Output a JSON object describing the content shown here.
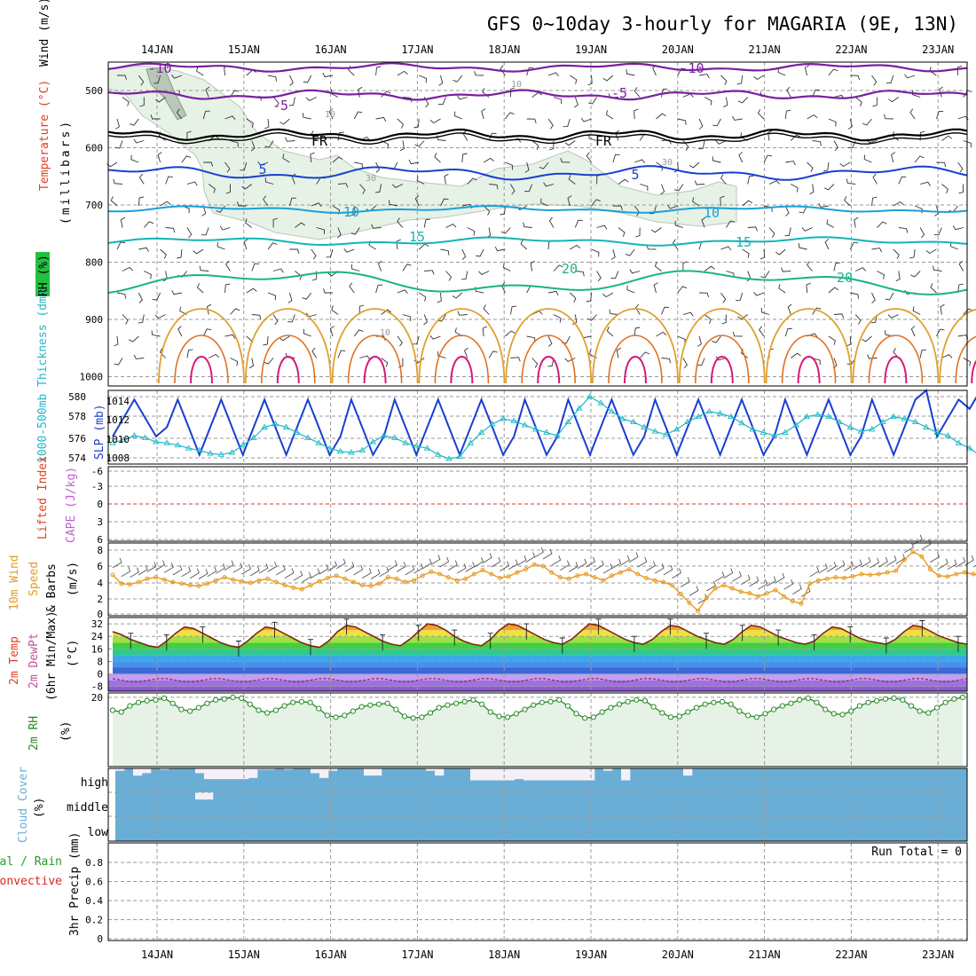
{
  "title": "GFS 0~10day 3-hourly for MAGARIA (9E, 13N)",
  "dates": [
    "14JAN",
    "15JAN",
    "16JAN",
    "17JAN",
    "18JAN",
    "19JAN",
    "20JAN",
    "21JAN",
    "22JAN",
    "23JAN"
  ],
  "colors": {
    "isotherm_cold": "#7a1fa0",
    "isotherm_fr": "#000000",
    "isotherm_blue": "#1a3fd1",
    "isotherm_lightblue": "#1a9fd9",
    "isotherm_teal": "#14b4b4",
    "isotherm_green": "#19b38a",
    "isotherm_orange": "#e0a030",
    "isotherm_darkorange": "#e07020",
    "isotherm_magenta": "#d6187a",
    "rh_fill": "#e6f2e6",
    "slp": "#1a3fd1",
    "thickness": "#20b8c8",
    "wind10": "#e89a20",
    "rh2m": "#2a8a2a",
    "cloud": "#6aaed6",
    "cloud_clear": "#f4f0f8"
  },
  "panels": {
    "upper": {
      "ylabel_wind": "Wind (m/s)",
      "ylabel_temp": "Temperature (°C)",
      "ylabel_rh": "RH (%)",
      "ylabel_pres": "(millibars)",
      "yticks": [
        "500",
        "600",
        "700",
        "800",
        "900",
        "1000"
      ],
      "contour_labels": [
        "-10",
        "-5",
        "FR",
        "5",
        "10",
        "15",
        "20",
        "-10",
        "-5",
        "FR",
        "5",
        "10",
        "15",
        "20",
        "10",
        "10",
        "30",
        "30",
        "10"
      ]
    },
    "slp": {
      "ylabel_thick": "1000-500mb Thickness (dm)",
      "ylabel_slp": "SLP (mb)",
      "left_ticks": [
        "580",
        "578",
        "576",
        "574"
      ],
      "right_ticks": [
        "1014",
        "1012",
        "1010",
        "1008"
      ]
    },
    "cape": {
      "ylabel_li": "Lifted Index",
      "ylabel_cape": "CAPE (J/kg)",
      "ticks": [
        "-6",
        "-3",
        "0",
        "3",
        "6"
      ]
    },
    "wind10": {
      "ylabel_a": "10m Wind",
      "ylabel_b": "Speed",
      "ylabel_c": "& Barbs",
      "ylabel_unit": "(m/s)",
      "ticks": [
        "8",
        "6",
        "4",
        "2",
        "0"
      ]
    },
    "temp2m": {
      "ylabel_a": "2m Temp",
      "ylabel_b": "2m DewPt",
      "ylabel_c": "(6hr Min/Max)",
      "ylabel_unit": "(°C)",
      "ticks": [
        "32",
        "24",
        "16",
        "8",
        "0",
        "-8"
      ]
    },
    "rh2m": {
      "ylabel": "2m RH",
      "ylabel_unit": "(%)",
      "ticks": [
        "20"
      ]
    },
    "cloud": {
      "ylabel": "Cloud Cover",
      "ylabel_unit": "(%)",
      "levels": [
        "high",
        "middle",
        "low"
      ]
    },
    "precip": {
      "ylabel_a": "Total / Rain",
      "ylabel_b": "Convective",
      "ylabel_unit": "3hr Precip (mm)",
      "ticks": [
        "0.8",
        "0.6",
        "0.4",
        "0.2",
        "0"
      ],
      "run_total": "Run Total = 0"
    }
  },
  "chart_data": [
    {
      "type": "line",
      "name": "slp-thickness",
      "x_unit": "3-hourly steps from 13JAN 12Z",
      "series": [
        {
          "name": "SLP (mb)",
          "axis": "right",
          "ylim": [
            1007,
            1015
          ],
          "values": [
            1010,
            1012,
            1014,
            1012,
            1010,
            1011,
            1014,
            1011,
            1008,
            1011,
            1014,
            1011,
            1008,
            1011,
            1014,
            1011,
            1008,
            1011,
            1014,
            1011,
            1008,
            1010,
            1014,
            1011,
            1008,
            1010,
            1014,
            1011,
            1008,
            1011,
            1014,
            1011,
            1008,
            1011,
            1014,
            1011,
            1008,
            1010,
            1014,
            1011,
            1008,
            1010,
            1014,
            1011,
            1008,
            1011,
            1014,
            1011,
            1008,
            1010,
            1014,
            1011,
            1008,
            1011,
            1014,
            1011,
            1008,
            1011,
            1014,
            1011,
            1008,
            1010,
            1014,
            1011,
            1008,
            1011,
            1014,
            1011,
            1008,
            1010,
            1014,
            1011,
            1008,
            1011,
            1014,
            1015,
            1010,
            1012,
            1014,
            1013,
            1015
          ]
        },
        {
          "name": "1000-500mb Thickness (dm)",
          "axis": "left",
          "ylim": [
            573.5,
            580.5
          ],
          "values": [
            575.5,
            575.8,
            576.2,
            576.0,
            575.6,
            575.5,
            575.3,
            575.0,
            574.8,
            574.5,
            574.4,
            574.6,
            575.3,
            576.0,
            577.0,
            577.3,
            577.0,
            576.5,
            576.0,
            575.5,
            575.0,
            574.7,
            574.6,
            574.8,
            575.6,
            576.2,
            576.0,
            575.5,
            575.2,
            575.0,
            574.4,
            574.0,
            574.2,
            575.5,
            576.5,
            577.3,
            577.8,
            577.6,
            577.2,
            576.8,
            576.5,
            576.2,
            577.5,
            578.8,
            579.9,
            579.3,
            578.5,
            577.8,
            577.5,
            577.0,
            576.6,
            576.3,
            576.8,
            577.5,
            578.0,
            578.5,
            578.3,
            578.0,
            577.4,
            576.8,
            576.5,
            576.2,
            576.5,
            577.2,
            578.0,
            578.2,
            578.0,
            577.5,
            577.0,
            576.6,
            576.8,
            577.5,
            578.0,
            577.8,
            577.5,
            577.0,
            576.5,
            576.2,
            575.5,
            575.0,
            574.3
          ]
        }
      ]
    },
    {
      "type": "line",
      "name": "lifted-index",
      "series": [
        {
          "name": "Lifted Index",
          "values": []
        }
      ],
      "ylim": [
        6,
        -6
      ],
      "reference": 0
    },
    {
      "type": "line",
      "name": "wind10m",
      "ylim": [
        0,
        9
      ],
      "series": [
        {
          "name": "Speed",
          "values": [
            4.9,
            3.8,
            3.7,
            4.0,
            4.4,
            4.6,
            4.3,
            4.0,
            3.8,
            3.6,
            3.5,
            3.8,
            4.2,
            4.6,
            4.3,
            4.1,
            3.9,
            4.2,
            4.4,
            4.0,
            3.6,
            3.3,
            3.1,
            3.6,
            4.1,
            4.5,
            4.8,
            4.4,
            4.0,
            3.6,
            3.5,
            3.8,
            4.6,
            4.4,
            4.0,
            4.2,
            4.8,
            5.3,
            5.0,
            4.6,
            4.2,
            4.4,
            5.0,
            5.5,
            5.0,
            4.5,
            4.7,
            5.2,
            5.6,
            6.2,
            6.0,
            5.2,
            4.6,
            4.4,
            4.8,
            5.0,
            4.6,
            4.2,
            4.8,
            5.2,
            5.6,
            5.0,
            4.5,
            4.2,
            4.0,
            3.6,
            2.5,
            1.4,
            0.4,
            2.0,
            3.2,
            3.6,
            3.2,
            2.8,
            2.6,
            2.2,
            2.6,
            3.0,
            2.2,
            1.6,
            1.3,
            3.8,
            4.2,
            4.4,
            4.6,
            4.5,
            4.7,
            5.0,
            4.9,
            5.0,
            5.2,
            5.4,
            6.8,
            7.8,
            7.2,
            5.6,
            4.8,
            4.7,
            5.0,
            5.2,
            5.0,
            4.8
          ]
        }
      ]
    },
    {
      "type": "area",
      "name": "temp2m",
      "ylim": [
        -11,
        36
      ],
      "series": [
        {
          "name": "2m Temp",
          "values": [
            27,
            25,
            22,
            20,
            18,
            17,
            21,
            26,
            30,
            29,
            26,
            23,
            20,
            18,
            17,
            21,
            26,
            30,
            29,
            26,
            23,
            20,
            18,
            17,
            21,
            27,
            31,
            30,
            27,
            24,
            21,
            19,
            18,
            22,
            27,
            32,
            31,
            28,
            24,
            21,
            19,
            18,
            22,
            28,
            32,
            31,
            28,
            25,
            22,
            20,
            19,
            22,
            27,
            32,
            31,
            28,
            25,
            22,
            20,
            19,
            22,
            27,
            31,
            30,
            27,
            24,
            22,
            20,
            19,
            22,
            27,
            31,
            30,
            27,
            24,
            22,
            20,
            19,
            21,
            26,
            30,
            29,
            26,
            23,
            21,
            20,
            19,
            22,
            27,
            31,
            30,
            27,
            24,
            22,
            20,
            19
          ]
        },
        {
          "name": "2m DewPt",
          "values": [
            -3,
            -4,
            -5,
            -5,
            -4,
            -3,
            -3,
            -4,
            -5,
            -5,
            -4,
            -3,
            -3,
            -4,
            -5,
            -5,
            -4,
            -3,
            -3,
            -4,
            -5,
            -5,
            -4,
            -3,
            -3,
            -4,
            -5,
            -5,
            -4,
            -3,
            -3,
            -4,
            -5,
            -5,
            -4,
            -3,
            -3,
            -4,
            -5,
            -5,
            -4,
            -3,
            -3,
            -4,
            -5,
            -5,
            -4,
            -3,
            -3,
            -4,
            -5,
            -5,
            -4,
            -3,
            -3,
            -4,
            -5,
            -5,
            -4,
            -3,
            -3,
            -4,
            -5,
            -5,
            -4,
            -3,
            -3,
            -4,
            -5,
            -5,
            -4,
            -3,
            -3,
            -4,
            -5,
            -5,
            -4,
            -3,
            -3,
            -4,
            -5,
            -5,
            -4,
            -3,
            -3,
            -4,
            -5,
            -5,
            -4,
            -3,
            -3,
            -4,
            -5,
            -5,
            -4,
            -3
          ]
        }
      ]
    },
    {
      "type": "line",
      "name": "rh2m",
      "ylim": [
        -60,
        25
      ],
      "series": [
        {
          "name": "2m RH",
          "values": [
            5,
            3,
            10,
            14,
            16,
            17,
            19,
            13,
            6,
            4,
            8,
            13,
            17,
            18,
            20,
            19,
            12,
            5,
            2,
            5,
            10,
            14,
            15,
            14,
            7,
            -1,
            -3,
            -1,
            4,
            9,
            11,
            12,
            13,
            6,
            -2,
            -4,
            -3,
            2,
            8,
            11,
            13,
            15,
            17,
            12,
            3,
            -2,
            -3,
            1,
            6,
            11,
            14,
            15,
            17,
            10,
            1,
            -4,
            -3,
            3,
            8,
            12,
            15,
            17,
            16,
            9,
            2,
            -3,
            -2,
            3,
            8,
            12,
            14,
            15,
            12,
            4,
            -1,
            -3,
            1,
            6,
            10,
            13,
            17,
            19,
            14,
            6,
            1,
            0,
            4,
            10,
            14,
            16,
            18,
            19,
            17,
            10,
            4,
            2,
            8,
            14,
            18,
            20
          ]
        }
      ]
    },
    {
      "type": "bar",
      "name": "cloud-cover",
      "levels": [
        "high",
        "middle",
        "low"
      ],
      "series": [
        {
          "name": "high",
          "values": [
            90,
            100,
            70,
            80,
            99,
            95,
            99,
            99,
            98,
            80,
            55,
            55,
            55,
            55,
            55,
            60,
            95,
            95,
            98,
            95,
            99,
            99,
            80,
            60,
            90,
            99,
            99,
            99,
            70,
            70,
            99,
            99,
            99,
            99,
            99,
            90,
            70,
            99,
            99,
            99,
            50,
            50,
            50,
            50,
            50,
            55,
            50,
            50,
            50,
            50,
            50,
            50,
            50,
            50,
            99,
            90,
            99,
            50,
            99,
            99,
            99,
            99,
            99,
            99,
            70,
            99,
            99,
            99,
            99,
            99,
            99,
            99,
            99,
            100,
            100,
            100,
            100,
            100,
            100,
            100,
            100,
            100,
            100,
            100,
            100,
            100,
            100,
            100,
            100,
            100,
            100,
            100,
            100,
            100,
            100,
            100
          ]
        },
        {
          "name": "middle",
          "values": [
            100,
            100,
            100,
            100,
            100,
            100,
            100,
            100,
            100,
            70,
            70,
            100,
            100,
            100,
            100,
            100,
            100,
            100,
            100,
            100,
            100,
            100,
            100,
            100,
            100,
            100,
            100,
            100,
            100,
            100,
            100,
            100,
            100,
            100,
            100,
            100,
            100,
            100,
            100,
            100,
            100,
            100,
            100,
            100,
            100,
            100,
            100,
            100,
            100,
            100,
            100,
            100,
            100,
            100,
            100,
            100,
            100,
            100,
            100,
            100,
            100,
            100,
            100,
            100,
            100,
            100,
            100,
            100,
            100,
            100,
            100,
            100,
            100,
            100,
            100,
            100,
            100,
            100,
            100,
            100,
            100,
            100,
            100,
            100,
            100,
            100,
            100,
            100,
            100,
            100,
            100,
            100,
            100,
            100,
            100,
            100
          ]
        },
        {
          "name": "low",
          "values": [
            100,
            100,
            100,
            100,
            100,
            100,
            100,
            100,
            100,
            100,
            100,
            100,
            100,
            100,
            100,
            100,
            100,
            100,
            100,
            100,
            100,
            100,
            100,
            100,
            100,
            100,
            100,
            100,
            100,
            100,
            100,
            100,
            100,
            100,
            100,
            100,
            100,
            100,
            100,
            100,
            100,
            100,
            100,
            100,
            100,
            100,
            100,
            100,
            100,
            100,
            100,
            100,
            100,
            100,
            100,
            100,
            100,
            100,
            100,
            100,
            100,
            100,
            100,
            100,
            100,
            100,
            100,
            100,
            100,
            100,
            100,
            100,
            100,
            100,
            100,
            100,
            100,
            100,
            100,
            100,
            100,
            100,
            100,
            100,
            100,
            100,
            100,
            100,
            100,
            100,
            100,
            100,
            100,
            100,
            100,
            100
          ]
        }
      ]
    },
    {
      "type": "bar",
      "name": "precip",
      "ylim": [
        0,
        1
      ],
      "series": [
        {
          "name": "3hr Precip",
          "values": []
        }
      ]
    }
  ]
}
